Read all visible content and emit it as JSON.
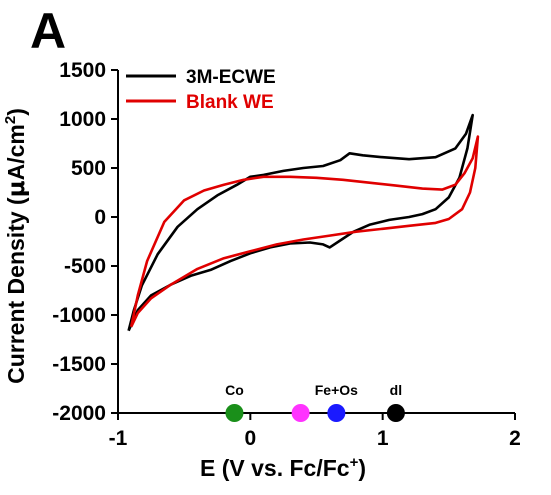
{
  "panel_label": "A",
  "chart_data": {
    "type": "line",
    "xlabel": "E (V vs. Fc/Fc",
    "xlabel_sup": "+",
    "xlabel_tail": ")",
    "ylabel": "Current Density (",
    "ylabel_mu": "μ",
    "ylabel_unit": "A/cm",
    "ylabel_sup": "2",
    "ylabel_tail": ")",
    "xlim": [
      -1,
      2
    ],
    "ylim": [
      -2000,
      1500
    ],
    "xticks": [
      -1,
      0,
      1,
      2
    ],
    "xtick_labels": [
      "-1",
      "0",
      "1",
      "2"
    ],
    "yticks": [
      1500,
      1000,
      500,
      0,
      -500,
      -1000,
      -1500,
      -2000
    ],
    "ytick_labels": [
      "1500",
      "1000",
      "500",
      "0",
      "-500",
      "-1000",
      "-1500",
      "-2000"
    ],
    "grid": false,
    "legend_position": "top-left",
    "series": [
      {
        "name": "3M-ECWE",
        "color": "#000000",
        "points": [
          [
            -0.92,
            -1160
          ],
          [
            -0.88,
            -950
          ],
          [
            -0.82,
            -700
          ],
          [
            -0.7,
            -380
          ],
          [
            -0.55,
            -100
          ],
          [
            -0.4,
            80
          ],
          [
            -0.25,
            220
          ],
          [
            -0.1,
            330
          ],
          [
            0,
            410
          ],
          [
            0.1,
            430
          ],
          [
            0.25,
            470
          ],
          [
            0.4,
            500
          ],
          [
            0.55,
            520
          ],
          [
            0.68,
            580
          ],
          [
            0.75,
            650
          ],
          [
            0.85,
            630
          ],
          [
            1.0,
            610
          ],
          [
            1.2,
            590
          ],
          [
            1.4,
            610
          ],
          [
            1.55,
            700
          ],
          [
            1.63,
            850
          ],
          [
            1.68,
            1040
          ],
          [
            1.68,
            1040
          ],
          [
            1.64,
            700
          ],
          [
            1.58,
            400
          ],
          [
            1.5,
            200
          ],
          [
            1.4,
            80
          ],
          [
            1.3,
            30
          ],
          [
            1.2,
            0
          ],
          [
            1.05,
            -30
          ],
          [
            0.9,
            -80
          ],
          [
            0.78,
            -150
          ],
          [
            0.7,
            -220
          ],
          [
            0.6,
            -310
          ],
          [
            0.55,
            -280
          ],
          [
            0.45,
            -260
          ],
          [
            0.3,
            -270
          ],
          [
            0.15,
            -310
          ],
          [
            0,
            -370
          ],
          [
            -0.15,
            -450
          ],
          [
            -0.3,
            -540
          ],
          [
            -0.45,
            -600
          ],
          [
            -0.6,
            -690
          ],
          [
            -0.75,
            -800
          ],
          [
            -0.85,
            -950
          ],
          [
            -0.92,
            -1160
          ]
        ]
      },
      {
        "name": "Blank WE",
        "color": "#e00000",
        "points": [
          [
            -0.9,
            -1120
          ],
          [
            -0.85,
            -800
          ],
          [
            -0.78,
            -450
          ],
          [
            -0.65,
            -50
          ],
          [
            -0.5,
            170
          ],
          [
            -0.35,
            270
          ],
          [
            -0.2,
            330
          ],
          [
            -0.05,
            380
          ],
          [
            0.1,
            410
          ],
          [
            0.3,
            410
          ],
          [
            0.5,
            400
          ],
          [
            0.7,
            380
          ],
          [
            0.9,
            350
          ],
          [
            1.1,
            320
          ],
          [
            1.3,
            290
          ],
          [
            1.45,
            280
          ],
          [
            1.55,
            330
          ],
          [
            1.62,
            450
          ],
          [
            1.68,
            600
          ],
          [
            1.72,
            820
          ],
          [
            1.72,
            820
          ],
          [
            1.7,
            500
          ],
          [
            1.66,
            250
          ],
          [
            1.6,
            80
          ],
          [
            1.5,
            -20
          ],
          [
            1.4,
            -60
          ],
          [
            1.2,
            -90
          ],
          [
            1.0,
            -120
          ],
          [
            0.8,
            -150
          ],
          [
            0.6,
            -190
          ],
          [
            0.4,
            -230
          ],
          [
            0.2,
            -280
          ],
          [
            0,
            -350
          ],
          [
            -0.2,
            -420
          ],
          [
            -0.4,
            -530
          ],
          [
            -0.6,
            -690
          ],
          [
            -0.75,
            -830
          ],
          [
            -0.85,
            -980
          ],
          [
            -0.9,
            -1120
          ]
        ]
      }
    ],
    "markers": [
      {
        "label": "Co",
        "x": -0.12,
        "y": -2000,
        "color": "#1a8f1a"
      },
      {
        "label": "",
        "x": 0.38,
        "y": -2000,
        "color": "#ff33ff"
      },
      {
        "label": "Fe+Os",
        "x": 0.65,
        "y": -2000,
        "color": "#1a1aff"
      },
      {
        "label": "dl",
        "x": 1.1,
        "y": -2000,
        "color": "#000000"
      }
    ]
  }
}
